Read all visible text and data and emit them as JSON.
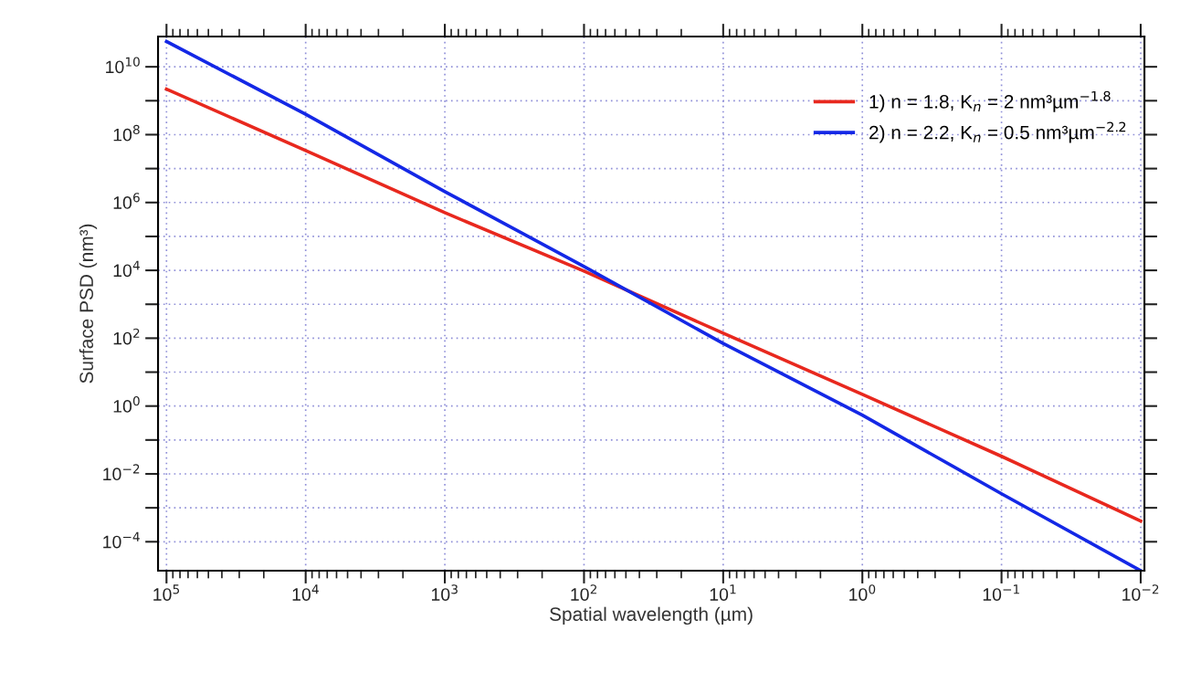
{
  "chart_data": {
    "type": "line",
    "xlabel": "Spatial wavelength (µm)",
    "ylabel": "Surface PSD (nm³)",
    "x": [
      100000,
      10000,
      1000,
      100,
      10,
      1,
      0.1,
      0.01
    ],
    "series": [
      {
        "name": "1) n = 1.8, K$_{n}$ = 2 nm³µm$^{−1.8}$",
        "color": "#e8281e",
        "values": [
          2200000000.0,
          34000000.0,
          500000.0,
          9500.0,
          140.0,
          2.2,
          0.033,
          0.00041
        ]
      },
      {
        "name": "2) n = 2.2, K$_{n}$ = 0.5 nm³µm$^{−2.2}$",
        "color": "#1428e6",
        "values": [
          56000000000.0,
          400000000.0,
          2100000.0,
          13000.0,
          70.0,
          0.54,
          0.0026,
          1.4e-05
        ]
      }
    ],
    "log": "xy",
    "xlim": [
      115000,
      0.0094
    ],
    "ylim": [
      1.4e-05,
      78000000000.0
    ],
    "xticks": [
      {
        "value": 100000,
        "label": "10$^{5}$"
      },
      {
        "value": 10000,
        "label": "10$^{4}$"
      },
      {
        "value": 1000,
        "label": "10$^{3}$"
      },
      {
        "value": 100,
        "label": "10$^{2}$"
      },
      {
        "value": 10,
        "label": "10$^{1}$"
      },
      {
        "value": 1,
        "label": "10$^{0}$"
      },
      {
        "value": 0.1,
        "label": "10$^{−1}$"
      },
      {
        "value": 0.01,
        "label": "10$^{−2}$"
      }
    ],
    "yticks": [
      {
        "value": 10000000000.0,
        "label": "10$^{10}$"
      },
      {
        "value": 1000000000.0,
        "label": null
      },
      {
        "value": 100000000.0,
        "label": "10$^{8}$"
      },
      {
        "value": 10000000.0,
        "label": null
      },
      {
        "value": 1000000.0,
        "label": "10$^{6}$"
      },
      {
        "value": 100000.0,
        "label": null
      },
      {
        "value": 10000.0,
        "label": "10$^{4}$"
      },
      {
        "value": 1000.0,
        "label": null
      },
      {
        "value": 100,
        "label": "10$^{2}$"
      },
      {
        "value": 10,
        "label": null
      },
      {
        "value": 1,
        "label": "10$^{0}$"
      },
      {
        "value": 0.1,
        "label": null
      },
      {
        "value": 0.01,
        "label": "10$^{−2}$"
      },
      {
        "value": 0.001,
        "label": null
      },
      {
        "value": 0.0001,
        "label": "10$^{−4}$"
      }
    ],
    "grid": true,
    "legend": "top right",
    "marker": "none",
    "line_style": "solid"
  }
}
